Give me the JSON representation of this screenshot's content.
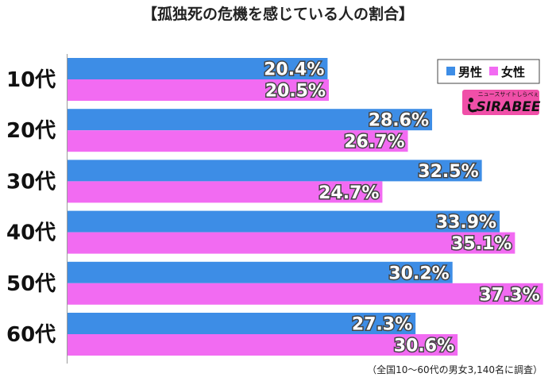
{
  "title": "【孤独死の危機を感じている人の割合】",
  "note": "（全国10～60代の男女3,140名に調査）",
  "logo": {
    "text": "SIRABEE",
    "subtitle": "ニュースサイトしらべぇ"
  },
  "colors": {
    "male": "#3d8de6",
    "female": "#f26bf2",
    "logo_bg": "#f04fa8"
  },
  "chart_data": {
    "type": "bar",
    "orientation": "horizontal",
    "categories": [
      "10代",
      "20代",
      "30代",
      "40代",
      "50代",
      "60代"
    ],
    "series": [
      {
        "name": "男性",
        "values": [
          20.4,
          28.6,
          32.5,
          33.9,
          30.2,
          27.3
        ]
      },
      {
        "name": "女性",
        "values": [
          20.5,
          26.7,
          24.7,
          35.1,
          37.3,
          30.6
        ]
      }
    ],
    "value_suffix": "%",
    "xlim": [
      0,
      40
    ],
    "grid": false,
    "legend_position": "top-right",
    "xlabel": "",
    "ylabel": ""
  }
}
